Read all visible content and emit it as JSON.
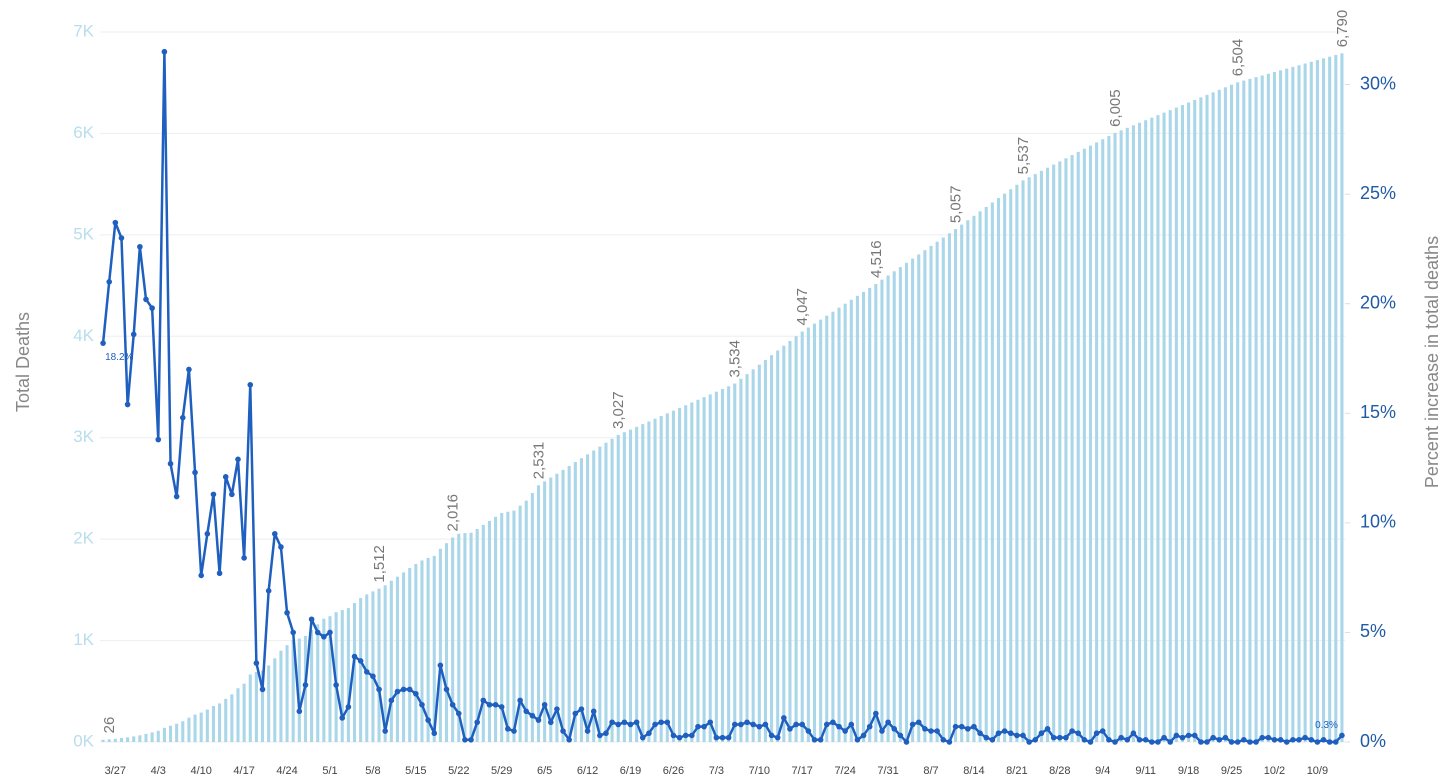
{
  "chart_data": {
    "type": "bar",
    "y_label": "Total Deaths",
    "y2_label": "Percent increase in total deaths",
    "categories": [
      null,
      null,
      "3/27",
      null,
      null,
      null,
      null,
      null,
      null,
      "4/3",
      null,
      null,
      null,
      null,
      null,
      null,
      "4/10",
      null,
      null,
      null,
      null,
      null,
      null,
      "4/17",
      null,
      null,
      null,
      null,
      null,
      null,
      "4/24",
      null,
      null,
      null,
      null,
      null,
      null,
      "5/1",
      null,
      null,
      null,
      null,
      null,
      null,
      "5/8",
      null,
      null,
      null,
      null,
      null,
      null,
      "5/15",
      null,
      null,
      null,
      null,
      null,
      null,
      "5/22",
      null,
      null,
      null,
      null,
      null,
      null,
      "5/29",
      null,
      null,
      null,
      null,
      null,
      null,
      "6/5",
      null,
      null,
      null,
      null,
      null,
      null,
      "6/12",
      null,
      null,
      null,
      null,
      null,
      null,
      "6/19",
      null,
      null,
      null,
      null,
      null,
      null,
      "6/26",
      null,
      null,
      null,
      null,
      null,
      null,
      "7/3",
      null,
      null,
      null,
      null,
      null,
      null,
      "7/10",
      null,
      null,
      null,
      null,
      null,
      null,
      "7/17",
      null,
      null,
      null,
      null,
      null,
      null,
      "7/24",
      null,
      null,
      null,
      null,
      null,
      null,
      "7/31",
      null,
      null,
      null,
      null,
      null,
      null,
      "8/7",
      null,
      null,
      null,
      null,
      null,
      null,
      "8/14",
      null,
      null,
      null,
      null,
      null,
      null,
      "8/21",
      null,
      null,
      null,
      null,
      null,
      null,
      "8/28",
      null,
      null,
      null,
      null,
      null,
      null,
      "9/4",
      null,
      null,
      null,
      null,
      null,
      null,
      "9/11",
      null,
      null,
      null,
      null,
      null,
      null,
      "9/18",
      null,
      null,
      null,
      null,
      null,
      null,
      "9/25",
      null,
      null,
      null,
      null,
      null,
      null,
      "10/2",
      null,
      null,
      null,
      null,
      null,
      null,
      "10/9",
      null,
      null,
      null,
      null
    ],
    "series": [
      {
        "type": "bar",
        "axis": "y",
        "color": "#a9d6e8",
        "values": [
          22,
          26,
          32,
          40,
          46,
          55,
          66,
          80,
          95,
          110,
          140,
          160,
          180,
          205,
          240,
          270,
          290,
          320,
          355,
          380,
          425,
          470,
          530,
          575,
          665,
          690,
          705,
          755,
          825,
          900,
          955,
          1005,
          1020,
          1045,
          1105,
          1160,
          1215,
          1240,
          1280,
          1300,
          1320,
          1370,
          1420,
          1455,
          1485,
          1512,
          1545,
          1590,
          1630,
          1672,
          1715,
          1755,
          1790,
          1815,
          1835,
          1905,
          1960,
          2016,
          2053,
          2060,
          2063,
          2100,
          2140,
          2180,
          2220,
          2258,
          2270,
          2282,
          2330,
          2380,
          2455,
          2531,
          2569,
          2607,
          2645,
          2683,
          2721,
          2760,
          2798,
          2836,
          2874,
          2912,
          2950,
          2989,
          3027,
          3054,
          3080,
          3107,
          3134,
          3160,
          3187,
          3214,
          3240,
          3267,
          3294,
          3320,
          3347,
          3374,
          3400,
          3427,
          3454,
          3480,
          3507,
          3534,
          3581,
          3627,
          3674,
          3720,
          3767,
          3814,
          3860,
          3907,
          3954,
          4000,
          4047,
          4086,
          4125,
          4164,
          4203,
          4242,
          4282,
          4321,
          4360,
          4399,
          4438,
          4477,
          4516,
          4558,
          4599,
          4641,
          4682,
          4724,
          4766,
          4807,
          4849,
          4891,
          4932,
          4974,
          5015,
          5057,
          5101,
          5144,
          5188,
          5232,
          5275,
          5319,
          5363,
          5406,
          5450,
          5494,
          5537,
          5568,
          5599,
          5631,
          5662,
          5693,
          5724,
          5755,
          5787,
          5818,
          5849,
          5880,
          5911,
          5943,
          5974,
          6005,
          6030,
          6055,
          6080,
          6105,
          6130,
          6155,
          6180,
          6205,
          6230,
          6255,
          6280,
          6305,
          6330,
          6355,
          6380,
          6405,
          6430,
          6455,
          6480,
          6504,
          6521,
          6538,
          6555,
          6571,
          6588,
          6605,
          6622,
          6639,
          6656,
          6672,
          6689,
          6706,
          6723,
          6740,
          6756,
          6773,
          6790
        ],
        "value_labels": [
          null,
          "26",
          null,
          null,
          null,
          null,
          null,
          null,
          null,
          null,
          null,
          null,
          null,
          null,
          null,
          null,
          null,
          null,
          null,
          null,
          null,
          null,
          null,
          null,
          null,
          null,
          null,
          null,
          null,
          null,
          null,
          null,
          null,
          null,
          null,
          null,
          null,
          null,
          null,
          null,
          null,
          null,
          null,
          null,
          null,
          "1,512",
          null,
          null,
          null,
          null,
          null,
          null,
          null,
          null,
          null,
          null,
          null,
          "2,016",
          null,
          null,
          null,
          null,
          null,
          null,
          null,
          null,
          null,
          null,
          null,
          null,
          null,
          "2,531",
          null,
          null,
          null,
          null,
          null,
          null,
          null,
          null,
          null,
          null,
          null,
          null,
          "3,027",
          null,
          null,
          null,
          null,
          null,
          null,
          null,
          null,
          null,
          null,
          null,
          null,
          null,
          null,
          null,
          null,
          null,
          null,
          "3,534",
          null,
          null,
          null,
          null,
          null,
          null,
          null,
          null,
          null,
          null,
          "4,047",
          null,
          null,
          null,
          null,
          null,
          null,
          null,
          null,
          null,
          null,
          null,
          "4,516",
          null,
          null,
          null,
          null,
          null,
          null,
          null,
          null,
          null,
          null,
          null,
          null,
          "5,057",
          null,
          null,
          null,
          null,
          null,
          null,
          null,
          null,
          null,
          null,
          "5,537",
          null,
          null,
          null,
          null,
          null,
          null,
          null,
          null,
          null,
          null,
          null,
          null,
          null,
          null,
          "6,005",
          null,
          null,
          null,
          null,
          null,
          null,
          null,
          null,
          null,
          null,
          null,
          null,
          null,
          null,
          null,
          null,
          null,
          null,
          null,
          "6,504",
          null,
          null,
          null,
          null,
          null,
          null,
          null,
          null,
          null,
          null,
          null,
          null,
          null,
          null,
          null,
          null,
          "6,790"
        ]
      },
      {
        "type": "line",
        "axis": "y2",
        "color": "#1f5fbf",
        "values": [
          18.2,
          21.0,
          23.7,
          23.0,
          15.4,
          18.6,
          22.6,
          20.2,
          19.8,
          13.8,
          31.5,
          12.7,
          11.2,
          14.8,
          17.0,
          12.3,
          7.6,
          9.5,
          11.3,
          7.7,
          12.1,
          11.3,
          12.9,
          8.4,
          16.3,
          3.6,
          2.4,
          6.9,
          9.5,
          8.9,
          5.9,
          5.0,
          1.4,
          2.6,
          5.6,
          5.0,
          4.8,
          5.0,
          2.6,
          1.1,
          1.6,
          3.9,
          3.7,
          3.2,
          3.0,
          2.4,
          0.5,
          1.9,
          2.3,
          2.4,
          2.4,
          2.2,
          1.7,
          1.0,
          0.4,
          3.5,
          2.4,
          1.7,
          1.3,
          0.1,
          0.1,
          0.9,
          1.9,
          1.7,
          1.7,
          1.6,
          0.6,
          0.5,
          1.9,
          1.4,
          1.2,
          1.0,
          1.7,
          0.9,
          1.5,
          0.5,
          0.1,
          1.3,
          1.5,
          0.5,
          1.4,
          0.3,
          0.4,
          0.9,
          0.8,
          0.9,
          0.8,
          0.9,
          0.2,
          0.4,
          0.8,
          0.9,
          0.9,
          0.3,
          0.2,
          0.3,
          0.3,
          0.7,
          0.7,
          0.9,
          0.2,
          0.2,
          0.2,
          0.8,
          0.8,
          0.9,
          0.8,
          0.7,
          0.8,
          0.3,
          0.2,
          1.1,
          0.6,
          0.8,
          0.8,
          0.5,
          0.1,
          0.1,
          0.8,
          0.9,
          0.7,
          0.5,
          0.8,
          0.1,
          0.3,
          0.7,
          1.3,
          0.5,
          0.9,
          0.6,
          0.3,
          0.0,
          0.8,
          0.9,
          0.6,
          0.5,
          0.5,
          0.1,
          0.0,
          0.7,
          0.7,
          0.6,
          0.7,
          0.4,
          0.2,
          0.1,
          0.4,
          0.5,
          0.4,
          0.3,
          0.3,
          0.0,
          0.1,
          0.4,
          0.6,
          0.2,
          0.2,
          0.2,
          0.5,
          0.4,
          0.1,
          0.0,
          0.4,
          0.5,
          0.1,
          0.0,
          0.2,
          0.1,
          0.4,
          0.1,
          0.1,
          0.0,
          0.0,
          0.2,
          0.0,
          0.3,
          0.2,
          0.3,
          0.3,
          0.0,
          0.0,
          0.2,
          0.1,
          0.2,
          0.0,
          0.0,
          0.1,
          0.0,
          0.0,
          0.2,
          0.2,
          0.1,
          0.1,
          0.0,
          0.1,
          0.1,
          0.2,
          0.1,
          0.0,
          0.1,
          0.0,
          0.0,
          0.3
        ],
        "value_labels": [
          "18.2%",
          null,
          null,
          null,
          null,
          null,
          null,
          null,
          null,
          null,
          null,
          null,
          null,
          null,
          null,
          null,
          null,
          null,
          null,
          null,
          null,
          null,
          null,
          null,
          null,
          null,
          null,
          null,
          null,
          null,
          null,
          null,
          null,
          null,
          null,
          null,
          null,
          null,
          null,
          null,
          null,
          null,
          null,
          null,
          null,
          null,
          null,
          null,
          null,
          null,
          null,
          null,
          null,
          null,
          null,
          null,
          null,
          null,
          null,
          null,
          null,
          null,
          null,
          null,
          null,
          null,
          null,
          null,
          null,
          null,
          null,
          null,
          null,
          null,
          null,
          null,
          null,
          null,
          null,
          null,
          null,
          null,
          null,
          null,
          null,
          null,
          null,
          null,
          null,
          null,
          null,
          null,
          null,
          null,
          null,
          null,
          null,
          null,
          null,
          null,
          null,
          null,
          null,
          null,
          null,
          null,
          null,
          null,
          null,
          null,
          null,
          null,
          null,
          null,
          null,
          null,
          null,
          null,
          null,
          null,
          null,
          null,
          null,
          null,
          null,
          null,
          null,
          null,
          null,
          null,
          null,
          null,
          null,
          null,
          null,
          null,
          null,
          null,
          null,
          null,
          null,
          null,
          null,
          null,
          null,
          null,
          null,
          null,
          null,
          null,
          null,
          null,
          null,
          null,
          null,
          null,
          null,
          null,
          null,
          null,
          null,
          null,
          null,
          null,
          null,
          null,
          null,
          null,
          null,
          null,
          null,
          null,
          null,
          null,
          null,
          null,
          null,
          null,
          null,
          null,
          null,
          null,
          null,
          null,
          null,
          null,
          null,
          null,
          null,
          null,
          null,
          null,
          null,
          null,
          null,
          null,
          null,
          null,
          null,
          null,
          null,
          null,
          "0.3%"
        ]
      }
    ],
    "ylim": [
      0,
      7000
    ],
    "yticks": [
      {
        "value": 0,
        "label": "0K"
      },
      {
        "value": 1000,
        "label": "1K"
      },
      {
        "value": 2000,
        "label": "2K"
      },
      {
        "value": 3000,
        "label": "3K"
      },
      {
        "value": 4000,
        "label": "4K"
      },
      {
        "value": 5000,
        "label": "5K"
      },
      {
        "value": 6000,
        "label": "6K"
      },
      {
        "value": 7000,
        "label": "7K"
      }
    ],
    "y2lim": [
      0,
      32.4
    ],
    "y2ticks": [
      {
        "value": 0,
        "label": "0%"
      },
      {
        "value": 5,
        "label": "5%"
      },
      {
        "value": 10,
        "label": "10%"
      },
      {
        "value": 15,
        "label": "15%"
      },
      {
        "value": 20,
        "label": "20%"
      },
      {
        "value": 25,
        "label": "25%"
      },
      {
        "value": 30,
        "label": "30%"
      }
    ],
    "grid": true
  }
}
